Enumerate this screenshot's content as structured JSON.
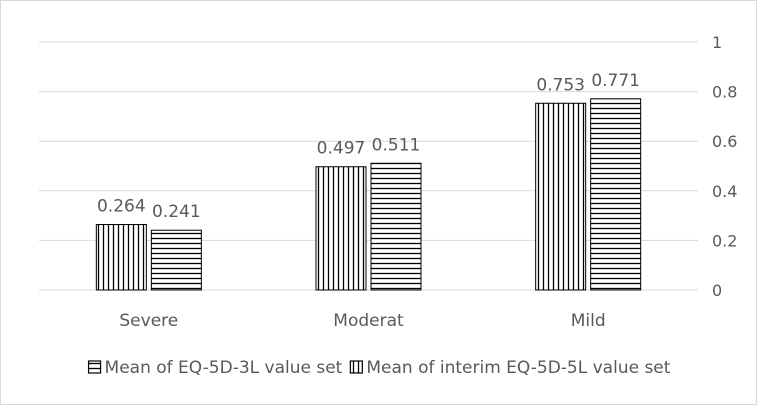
{
  "chart_data": {
    "type": "bar",
    "title": "",
    "xlabel": "",
    "ylabel": "",
    "categories": [
      "Severe",
      "Moderat",
      "Mild"
    ],
    "series": [
      {
        "name": "Mean of interim EQ-5D-5L value set",
        "values": [
          0.264,
          0.497,
          0.753
        ],
        "pattern": "vertical-lines"
      },
      {
        "name": "Mean of EQ-5D-3L value set",
        "values": [
          0.241,
          0.511,
          0.771
        ],
        "pattern": "horizontal-lines"
      }
    ],
    "data_labels": [
      [
        "0.264",
        "0.497",
        "0.753"
      ],
      [
        "0.241",
        "0.511",
        "0.771"
      ]
    ],
    "legend_order": [
      1,
      0
    ],
    "ylim": [
      0,
      1
    ],
    "yticks": [
      0,
      0.2,
      0.4,
      0.6,
      0.8,
      1
    ],
    "ytick_labels": [
      "0",
      "0.2",
      "0.4",
      "0.6",
      "0.8",
      "1"
    ],
    "y_axis_side": "right",
    "grid": true,
    "legend_position": "bottom",
    "colors": {
      "bar_stroke": "#000000",
      "grid": "#d9d9d9",
      "text": "#595959",
      "bar_fill": "#ffffff"
    }
  }
}
